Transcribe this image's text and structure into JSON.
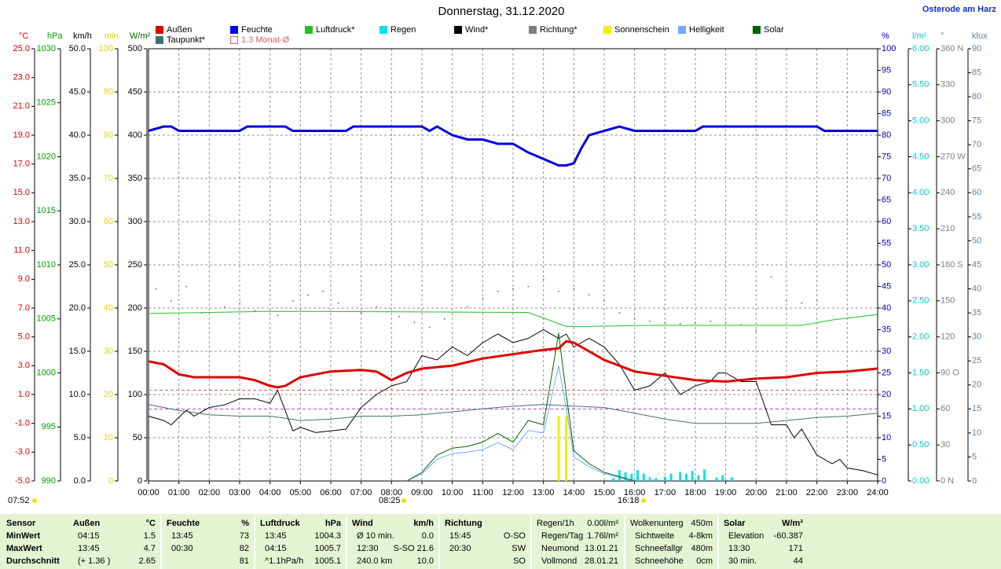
{
  "chart_data": {
    "type": "line",
    "title": "Donnerstag, 31.12.2020",
    "subtitle": "Osterode am Harz",
    "grid": true,
    "xlim": [
      0,
      24
    ],
    "xticks": [
      {
        "value": 0,
        "label": "00:00"
      },
      {
        "value": 1,
        "label": "01:00"
      },
      {
        "value": 2,
        "label": "02:00"
      },
      {
        "value": 3,
        "label": "03:00"
      },
      {
        "value": 4,
        "label": "04:00"
      },
      {
        "value": 5,
        "label": "05:00"
      },
      {
        "value": 6,
        "label": "06:00"
      },
      {
        "value": 7,
        "label": "07:00"
      },
      {
        "value": 8,
        "label": "08:00"
      },
      {
        "value": 9,
        "label": "09:00"
      },
      {
        "value": 10,
        "label": "10:00"
      },
      {
        "value": 11,
        "label": "11:00"
      },
      {
        "value": 12,
        "label": "12:00"
      },
      {
        "value": 13,
        "label": "13:00"
      },
      {
        "value": 14,
        "label": "14:00"
      },
      {
        "value": 15,
        "label": "15:00"
      },
      {
        "value": 16,
        "label": "16:00"
      },
      {
        "value": 17,
        "label": "17:00"
      },
      {
        "value": 18,
        "label": "18:00"
      },
      {
        "value": 19,
        "label": "19:00"
      },
      {
        "value": 20,
        "label": "20:00"
      },
      {
        "value": 21,
        "label": "21:00"
      },
      {
        "value": 22,
        "label": "22:00"
      },
      {
        "value": 23,
        "label": "23:00"
      },
      {
        "value": 24,
        "label": "24:00"
      }
    ],
    "axes": [
      {
        "label": "°C",
        "color": "#e00000",
        "side": "left",
        "lim": [
          -5,
          25
        ],
        "ticks": [
          {
            "value": -5,
            "label": "-5.0"
          },
          {
            "value": -3,
            "label": "-3.0"
          },
          {
            "value": -1,
            "label": "-1.0"
          },
          {
            "value": 1,
            "label": "1.0"
          },
          {
            "value": 3,
            "label": "3.0"
          },
          {
            "value": 5,
            "label": "5.0"
          },
          {
            "value": 7,
            "label": "7.0"
          },
          {
            "value": 9,
            "label": "9.0"
          },
          {
            "value": 11,
            "label": "11.0"
          },
          {
            "value": 13,
            "label": "13.0"
          },
          {
            "value": 15,
            "label": "15.0"
          },
          {
            "value": 17,
            "label": "17.0"
          },
          {
            "value": 19,
            "label": "19.0"
          },
          {
            "value": 21,
            "label": "21.0"
          },
          {
            "value": 23,
            "label": "23.0"
          },
          {
            "value": 25,
            "label": "25.0"
          }
        ]
      },
      {
        "label": "hPa",
        "color": "#00a000",
        "side": "left",
        "lim": [
          990,
          1030
        ],
        "ticks": [
          990,
          995,
          1000,
          1005,
          1010,
          1015,
          1020,
          1025,
          1030
        ]
      },
      {
        "label": "km/h",
        "color": "#000000",
        "side": "left",
        "lim": [
          0,
          50
        ],
        "ticks": [
          {
            "value": 0,
            "label": "0.0"
          },
          {
            "value": 5,
            "label": "5.0"
          },
          {
            "value": 10,
            "label": "10.0"
          },
          {
            "value": 15,
            "label": "15.0"
          },
          {
            "value": 20,
            "label": "20.0"
          },
          {
            "value": 25,
            "label": "25.0"
          },
          {
            "value": 30,
            "label": "30.0"
          },
          {
            "value": 35,
            "label": "35.0"
          },
          {
            "value": 40,
            "label": "40.0"
          },
          {
            "value": 45,
            "label": "45.0"
          },
          {
            "value": 50,
            "label": "50.0"
          }
        ]
      },
      {
        "label": "min",
        "color": "#d8d800",
        "side": "left",
        "lim": [
          0,
          100
        ],
        "ticks": [
          0,
          10,
          20,
          30,
          40,
          50,
          60,
          70,
          80,
          90,
          100
        ]
      },
      {
        "label": "W/m²",
        "color": "#006000",
        "side": "left",
        "lim": [
          0,
          500
        ],
        "ticks": [
          0,
          50,
          100,
          150,
          200,
          250,
          300,
          350,
          400,
          450,
          500
        ]
      },
      {
        "label": "%",
        "color": "#0000c0",
        "side": "right",
        "lim": [
          0,
          100
        ],
        "ticks": [
          0,
          5,
          10,
          15,
          20,
          25,
          30,
          35,
          40,
          45,
          50,
          55,
          60,
          65,
          70,
          75,
          80,
          85,
          90,
          95,
          100
        ]
      },
      {
        "label": "l/m²",
        "color": "#00c8d8",
        "side": "right",
        "lim": [
          0,
          6
        ],
        "ticks": [
          {
            "value": 0,
            "label": "0.00"
          },
          {
            "value": 0.5,
            "label": "0.50"
          },
          {
            "value": 1,
            "label": "1.00"
          },
          {
            "value": 1.5,
            "label": "1.50"
          },
          {
            "value": 2,
            "label": "2.00"
          },
          {
            "value": 2.5,
            "label": "2.50"
          },
          {
            "value": 3,
            "label": "3.00"
          },
          {
            "value": 3.5,
            "label": "3.50"
          },
          {
            "value": 4,
            "label": "4.00"
          },
          {
            "value": 4.5,
            "label": "4.50"
          },
          {
            "value": 5,
            "label": "5.00"
          },
          {
            "value": 5.5,
            "label": "5.50"
          },
          {
            "value": 6,
            "label": "6.00"
          }
        ]
      },
      {
        "label": "°",
        "color": "#808080",
        "side": "right",
        "lim": [
          0,
          360
        ],
        "ticks": [
          {
            "value": 0,
            "label": "0 N"
          },
          30,
          60,
          {
            "value": 90,
            "label": "90 O"
          },
          120,
          150,
          {
            "value": 180,
            "label": "180 S"
          },
          210,
          240,
          {
            "value": 270,
            "label": "270 W"
          },
          300,
          330,
          {
            "value": 360,
            "label": "360 N"
          }
        ]
      },
      {
        "label": "klux",
        "color": "#5a86a8",
        "side": "right",
        "lim": [
          0,
          90
        ],
        "ticks": [
          0,
          5,
          10,
          15,
          20,
          25,
          30,
          35,
          40,
          45,
          50,
          55,
          60,
          65,
          70,
          75,
          80,
          85,
          90
        ]
      }
    ],
    "series": [
      {
        "name": "Außen",
        "color": "#e00000",
        "axis": "°C",
        "style": "line",
        "width": 3,
        "x": [
          0,
          0.5,
          1,
          1.5,
          2,
          3,
          3.5,
          4,
          4.25,
          4.5,
          5,
          6,
          7,
          7.5,
          8,
          8.5,
          9,
          10,
          11,
          12,
          13,
          13.5,
          13.75,
          14,
          14.5,
          15,
          16,
          17,
          18,
          19,
          20,
          21,
          22,
          23,
          24
        ],
        "values": [
          3.3,
          3.1,
          2.4,
          2.2,
          2.2,
          2.2,
          2.0,
          1.6,
          1.5,
          1.6,
          2.2,
          2.6,
          2.7,
          2.6,
          2.0,
          2.5,
          2.8,
          3.0,
          3.5,
          3.8,
          4.1,
          4.2,
          4.7,
          4.6,
          4.0,
          3.4,
          2.6,
          2.3,
          2.0,
          1.9,
          2.1,
          2.2,
          2.5,
          2.6,
          2.8
        ]
      },
      {
        "name": "Feuchte",
        "color": "#0000e0",
        "axis": "%",
        "style": "line",
        "width": 3,
        "x": [
          0,
          0.5,
          0.75,
          1,
          3,
          3.25,
          4.5,
          4.75,
          6.5,
          6.75,
          9,
          9.25,
          9.5,
          9.75,
          10,
          10.5,
          11,
          11.5,
          12,
          12.5,
          13,
          13.5,
          13.75,
          14,
          14.25,
          14.5,
          15,
          15.5,
          16,
          18,
          18.25,
          22,
          22.25,
          24
        ],
        "values": [
          81,
          82,
          82,
          81,
          81,
          82,
          82,
          81,
          81,
          82,
          82,
          81,
          82,
          81,
          80,
          79,
          79,
          78,
          78,
          76,
          74.5,
          73,
          73,
          73.5,
          77,
          80,
          81,
          82,
          81,
          81,
          82,
          82,
          81,
          81
        ]
      },
      {
        "name": "Luftdruck*",
        "color": "#20c020",
        "axis": "hPa",
        "style": "line",
        "width": 1,
        "x": [
          0,
          4,
          12.5,
          13.75,
          14.5,
          16.5,
          21.5,
          22.5,
          24
        ],
        "values": [
          1005.5,
          1005.7,
          1005.6,
          1004.3,
          1004.3,
          1004.4,
          1004.4,
          1004.9,
          1005.4
        ]
      },
      {
        "name": "Regen",
        "color": "#00e0f0",
        "axis": "l/m²",
        "style": "bar",
        "x": [
          15.3,
          15.5,
          15.7,
          15.9,
          16.1,
          16.3,
          16.5,
          16.7,
          17,
          17.2,
          17.5,
          17.7,
          17.9,
          18.1,
          18.3,
          18.7,
          18.9,
          19.2
        ],
        "values": [
          0.04,
          0.15,
          0.12,
          0.1,
          0.15,
          0.1,
          0.05,
          0.04,
          0.06,
          0.1,
          0.12,
          0.1,
          0.14,
          0.08,
          0.16,
          0.05,
          0.08,
          0.05
        ]
      },
      {
        "name": "Wind*",
        "color": "#000000",
        "axis": "km/h",
        "style": "line",
        "width": 1,
        "x": [
          0,
          0.5,
          0.75,
          1.25,
          1.5,
          2,
          2.5,
          3,
          3.5,
          4,
          4.25,
          4.75,
          5,
          5.5,
          6,
          6.5,
          7,
          7.5,
          8,
          8.5,
          9,
          9.5,
          10,
          10.5,
          11,
          11.5,
          12,
          12.5,
          13,
          13.5,
          13.75,
          14,
          14.5,
          15,
          15.5,
          16,
          16.5,
          17,
          17.5,
          18,
          18.5,
          18.75,
          19,
          19.5,
          20,
          20.5,
          21,
          21.25,
          21.5,
          22,
          22.5,
          22.75,
          23,
          23.5,
          24
        ],
        "values": [
          7.5,
          7.0,
          6.5,
          8.2,
          7.5,
          8.5,
          8.8,
          9.5,
          9.5,
          9.0,
          10.5,
          5.8,
          6.2,
          5.6,
          5.8,
          6.0,
          8.5,
          10.0,
          11.0,
          11.5,
          14.5,
          14.0,
          15.5,
          14.5,
          16.0,
          17.0,
          16.0,
          16.5,
          17.5,
          16.5,
          17.0,
          15.5,
          16.5,
          15.5,
          13.5,
          10.5,
          11.0,
          12.5,
          10.0,
          11.0,
          11.5,
          12.5,
          12.5,
          11.5,
          11.5,
          6.5,
          6.5,
          5.0,
          6.0,
          3.0,
          2.0,
          2.5,
          1.5,
          1.2,
          0.7
        ]
      },
      {
        "name": "Richtung*",
        "color": "#808080",
        "axis": "°",
        "style": "dot",
        "x": [
          0.25,
          0.75,
          1.25,
          1.75,
          2.5,
          3,
          3.5,
          4.25,
          4.75,
          5.25,
          5.75,
          6.25,
          7,
          7.5,
          8.25,
          8.75,
          9.25,
          9.75,
          10.5,
          11,
          11.5,
          12,
          12.5,
          13,
          13.5,
          14,
          14.5,
          15,
          15.5,
          16,
          16.5,
          17,
          17.5,
          18,
          18.5,
          19,
          19.5,
          20,
          20.5,
          21,
          21.5,
          22
        ],
        "values": [
          160,
          150,
          162,
          140,
          145,
          148,
          142,
          138,
          150,
          155,
          158,
          148,
          140,
          145,
          137,
          132,
          128,
          135,
          145,
          152,
          158,
          160,
          162,
          168,
          158,
          160,
          155,
          150,
          140,
          135,
          133,
          132,
          131,
          132,
          133,
          132,
          130,
          125,
          170,
          150,
          148,
          150
        ]
      },
      {
        "name": "Sonnenschein",
        "color": "#f0f000",
        "axis": "min",
        "style": "bar",
        "x": [
          13.5,
          13.75
        ],
        "values": [
          15,
          15
        ]
      },
      {
        "name": "Helligkeit",
        "color": "#70a8ff",
        "axis": "klux",
        "style": "line",
        "width": 1,
        "x": [
          8.5,
          9,
          9.5,
          10,
          10.5,
          11,
          11.5,
          12,
          12.5,
          13,
          13.5,
          13.75,
          14,
          14.5,
          15,
          15.5,
          16
        ],
        "values": [
          0,
          1.5,
          4.5,
          5.7,
          6.0,
          6.5,
          8.0,
          6.5,
          10.5,
          10,
          24,
          15,
          5,
          3,
          1.5,
          0.7,
          0
        ]
      },
      {
        "name": "Solar",
        "color": "#006000",
        "axis": "W/m²",
        "style": "line",
        "width": 1,
        "x": [
          8.5,
          9,
          9.5,
          10,
          10.5,
          11,
          11.5,
          12,
          12.5,
          13,
          13.5,
          13.75,
          14,
          14.5,
          15,
          15.5,
          16
        ],
        "values": [
          0,
          10,
          30,
          38,
          40,
          45,
          55,
          45,
          70,
          65,
          171,
          100,
          35,
          20,
          10,
          5,
          0
        ]
      },
      {
        "name": "Taupunkt*",
        "color": "#407070",
        "axis": "°C",
        "style": "line",
        "width": 1,
        "x": [
          0,
          1,
          2,
          3,
          4,
          5,
          6,
          7,
          8,
          9,
          10,
          11,
          12,
          13,
          14,
          15,
          16,
          17,
          18,
          19,
          20,
          21,
          22,
          23,
          24
        ],
        "values": [
          0.3,
          -0.1,
          -0.4,
          -0.5,
          -0.5,
          -0.8,
          -0.7,
          -0.5,
          -0.5,
          -0.4,
          -0.2,
          0.0,
          0.2,
          0.3,
          0.2,
          0.1,
          -0.3,
          -0.7,
          -1.0,
          -1.0,
          -1.0,
          -0.8,
          -0.6,
          -0.5,
          -0.3
        ]
      }
    ],
    "reference_lines": [
      {
        "name": "1.3 Monat-Ø",
        "color": "#e06060",
        "axis": "°C",
        "value": 1.3
      },
      {
        "color": "#c040c0",
        "axis": "°C",
        "value": 0.0
      }
    ],
    "annotations": [
      "07:52",
      "08:25",
      "16:18"
    ]
  },
  "table": {
    "rows": [
      [
        "Sensor",
        "Außen",
        "°C",
        "Feuchte",
        "%",
        "Luftdruck",
        "hPa",
        "Wind",
        "km/h",
        "Richtung",
        null,
        "Regen/1h",
        "0.00l/m²",
        "Wolkenunterg",
        "450m",
        "Solar",
        "W/m²"
      ],
      [
        "MinWert",
        "04:15",
        "1.5",
        "13:45",
        "73",
        "13:45",
        "1004.3",
        "Ø 10 min.",
        "0.0",
        "15:45",
        "O-SO",
        "Regen/Tag",
        "1.76l/m²",
        "Sichtweite",
        "4-8km",
        "Elevation",
        "-60.387"
      ],
      [
        "MaxWert",
        "13:45",
        "4.7",
        "00:30",
        "82",
        "04:15",
        "1005.7",
        "12:30",
        "S-SO 21.6",
        "20:30",
        "SW",
        "Neumond",
        "13.01.21",
        "Schneefallgr",
        "480m",
        "13:30",
        "171"
      ],
      [
        "Durchschnitt",
        "(+ 1.36 )",
        "2.65",
        null,
        "81",
        "^1.1hPa/h",
        "1005.1",
        "240.0 km",
        "10.0",
        null,
        "SO",
        "Vollmond",
        "28.01.21",
        "Schneehöhe",
        "0cm",
        "30 min.",
        "44"
      ]
    ]
  }
}
